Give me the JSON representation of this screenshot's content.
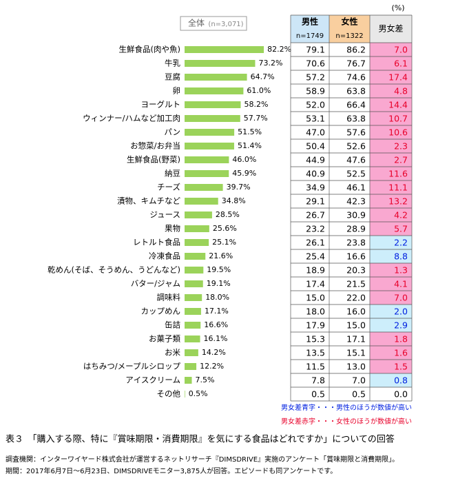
{
  "chart_data": {
    "type": "bar",
    "title": "全体",
    "subtitle": "(n=3,071)",
    "color": "#9bd35a",
    "categories": [
      "生鮮食品(肉や魚)",
      "牛乳",
      "豆腐",
      "卵",
      "ヨーグルト",
      "ウィンナー/ハムなど加工肉",
      "パン",
      "お惣菜/お弁当",
      "生鮮食品(野菜)",
      "納豆",
      "チーズ",
      "漬物、キムチなど",
      "ジュース",
      "果物",
      "レトルト食品",
      "冷凍食品",
      "乾めん(そば、そうめん、うどんなど)",
      "バター/ジャム",
      "調味料",
      "カップめん",
      "缶詰",
      "お菓子類",
      "お米",
      "はちみつ/メープルシロップ",
      "アイスクリーム",
      "その他"
    ],
    "values": [
      82.2,
      73.2,
      64.7,
      61.0,
      58.2,
      57.7,
      51.5,
      51.4,
      46.0,
      45.9,
      39.7,
      34.8,
      28.5,
      25.6,
      25.1,
      21.6,
      19.5,
      19.1,
      18.0,
      17.1,
      16.6,
      16.1,
      14.2,
      12.2,
      7.5,
      0.5
    ],
    "value_labels": [
      "82.2%",
      "73.2%",
      "64.7%",
      "61.0%",
      "58.2%",
      "57.7%",
      "51.5%",
      "51.4%",
      "46.0%",
      "45.9%",
      "39.7%",
      "34.8%",
      "28.5%",
      "25.6%",
      "25.1%",
      "21.6%",
      "19.5%",
      "19.1%",
      "18.0%",
      "17.1%",
      "16.6%",
      "16.1%",
      "14.2%",
      "12.2%",
      "7.5%",
      "0.5%"
    ]
  },
  "table": {
    "unit": "(%)",
    "columns": [
      {
        "name": "男性",
        "n": "n=1749",
        "color": "#cde6f7"
      },
      {
        "name": "女性",
        "n": "n=1322",
        "color": "#f9cf9f"
      },
      {
        "name": "男女差",
        "color": "#e8e8e8"
      }
    ],
    "diff_colors": {
      "female_higher": {
        "background": "#f9a8d0",
        "text": "#e8002a"
      },
      "male_higher": {
        "background": "#cdeefb",
        "text": "#0020e0"
      }
    },
    "rows": [
      [
        "79.1",
        "86.2",
        "7.0"
      ],
      [
        "70.6",
        "76.7",
        "6.1"
      ],
      [
        "57.2",
        "74.6",
        "17.4"
      ],
      [
        "58.9",
        "63.8",
        "4.8"
      ],
      [
        "52.0",
        "66.4",
        "14.4"
      ],
      [
        "53.1",
        "63.8",
        "10.7"
      ],
      [
        "47.0",
        "57.6",
        "10.6"
      ],
      [
        "50.4",
        "52.6",
        "2.3"
      ],
      [
        "44.9",
        "47.6",
        "2.7"
      ],
      [
        "40.9",
        "52.5",
        "11.6"
      ],
      [
        "34.9",
        "46.1",
        "11.1"
      ],
      [
        "29.1",
        "42.3",
        "13.2"
      ],
      [
        "26.7",
        "30.9",
        "4.2"
      ],
      [
        "23.2",
        "28.9",
        "5.7"
      ],
      [
        "26.1",
        "23.8",
        "2.2"
      ],
      [
        "25.4",
        "16.6",
        "8.8"
      ],
      [
        "18.9",
        "20.3",
        "1.3"
      ],
      [
        "17.4",
        "21.5",
        "4.1"
      ],
      [
        "15.0",
        "22.0",
        "7.0"
      ],
      [
        "18.0",
        "16.0",
        "2.0"
      ],
      [
        "17.9",
        "15.0",
        "2.9"
      ],
      [
        "15.3",
        "17.1",
        "1.8"
      ],
      [
        "13.5",
        "15.1",
        "1.6"
      ],
      [
        "11.5",
        "13.0",
        "1.5"
      ],
      [
        "7.8",
        "7.0",
        "0.8"
      ],
      [
        "0.5",
        "0.5",
        "0.0"
      ]
    ],
    "notes": [
      "男女差青字・・・男性のほうが数値が高い",
      "男女差赤字・・・女性のほうが数値が高い"
    ]
  },
  "caption": "表３　「購入する際、特に『賞味期限・消費期限』を気にする食品はどれですか」についての回答",
  "footnotes": [
    "調査機関：インターワイヤード株式会社が運営するネットリサーチ『DIMSDRIVE』実施のアンケート「賞味期限と消費期限」。",
    "期間：2017年6月7日～6月23日、DIMSDRIVEモニター3,875人が回答。エピソードも同アンケートです。"
  ]
}
